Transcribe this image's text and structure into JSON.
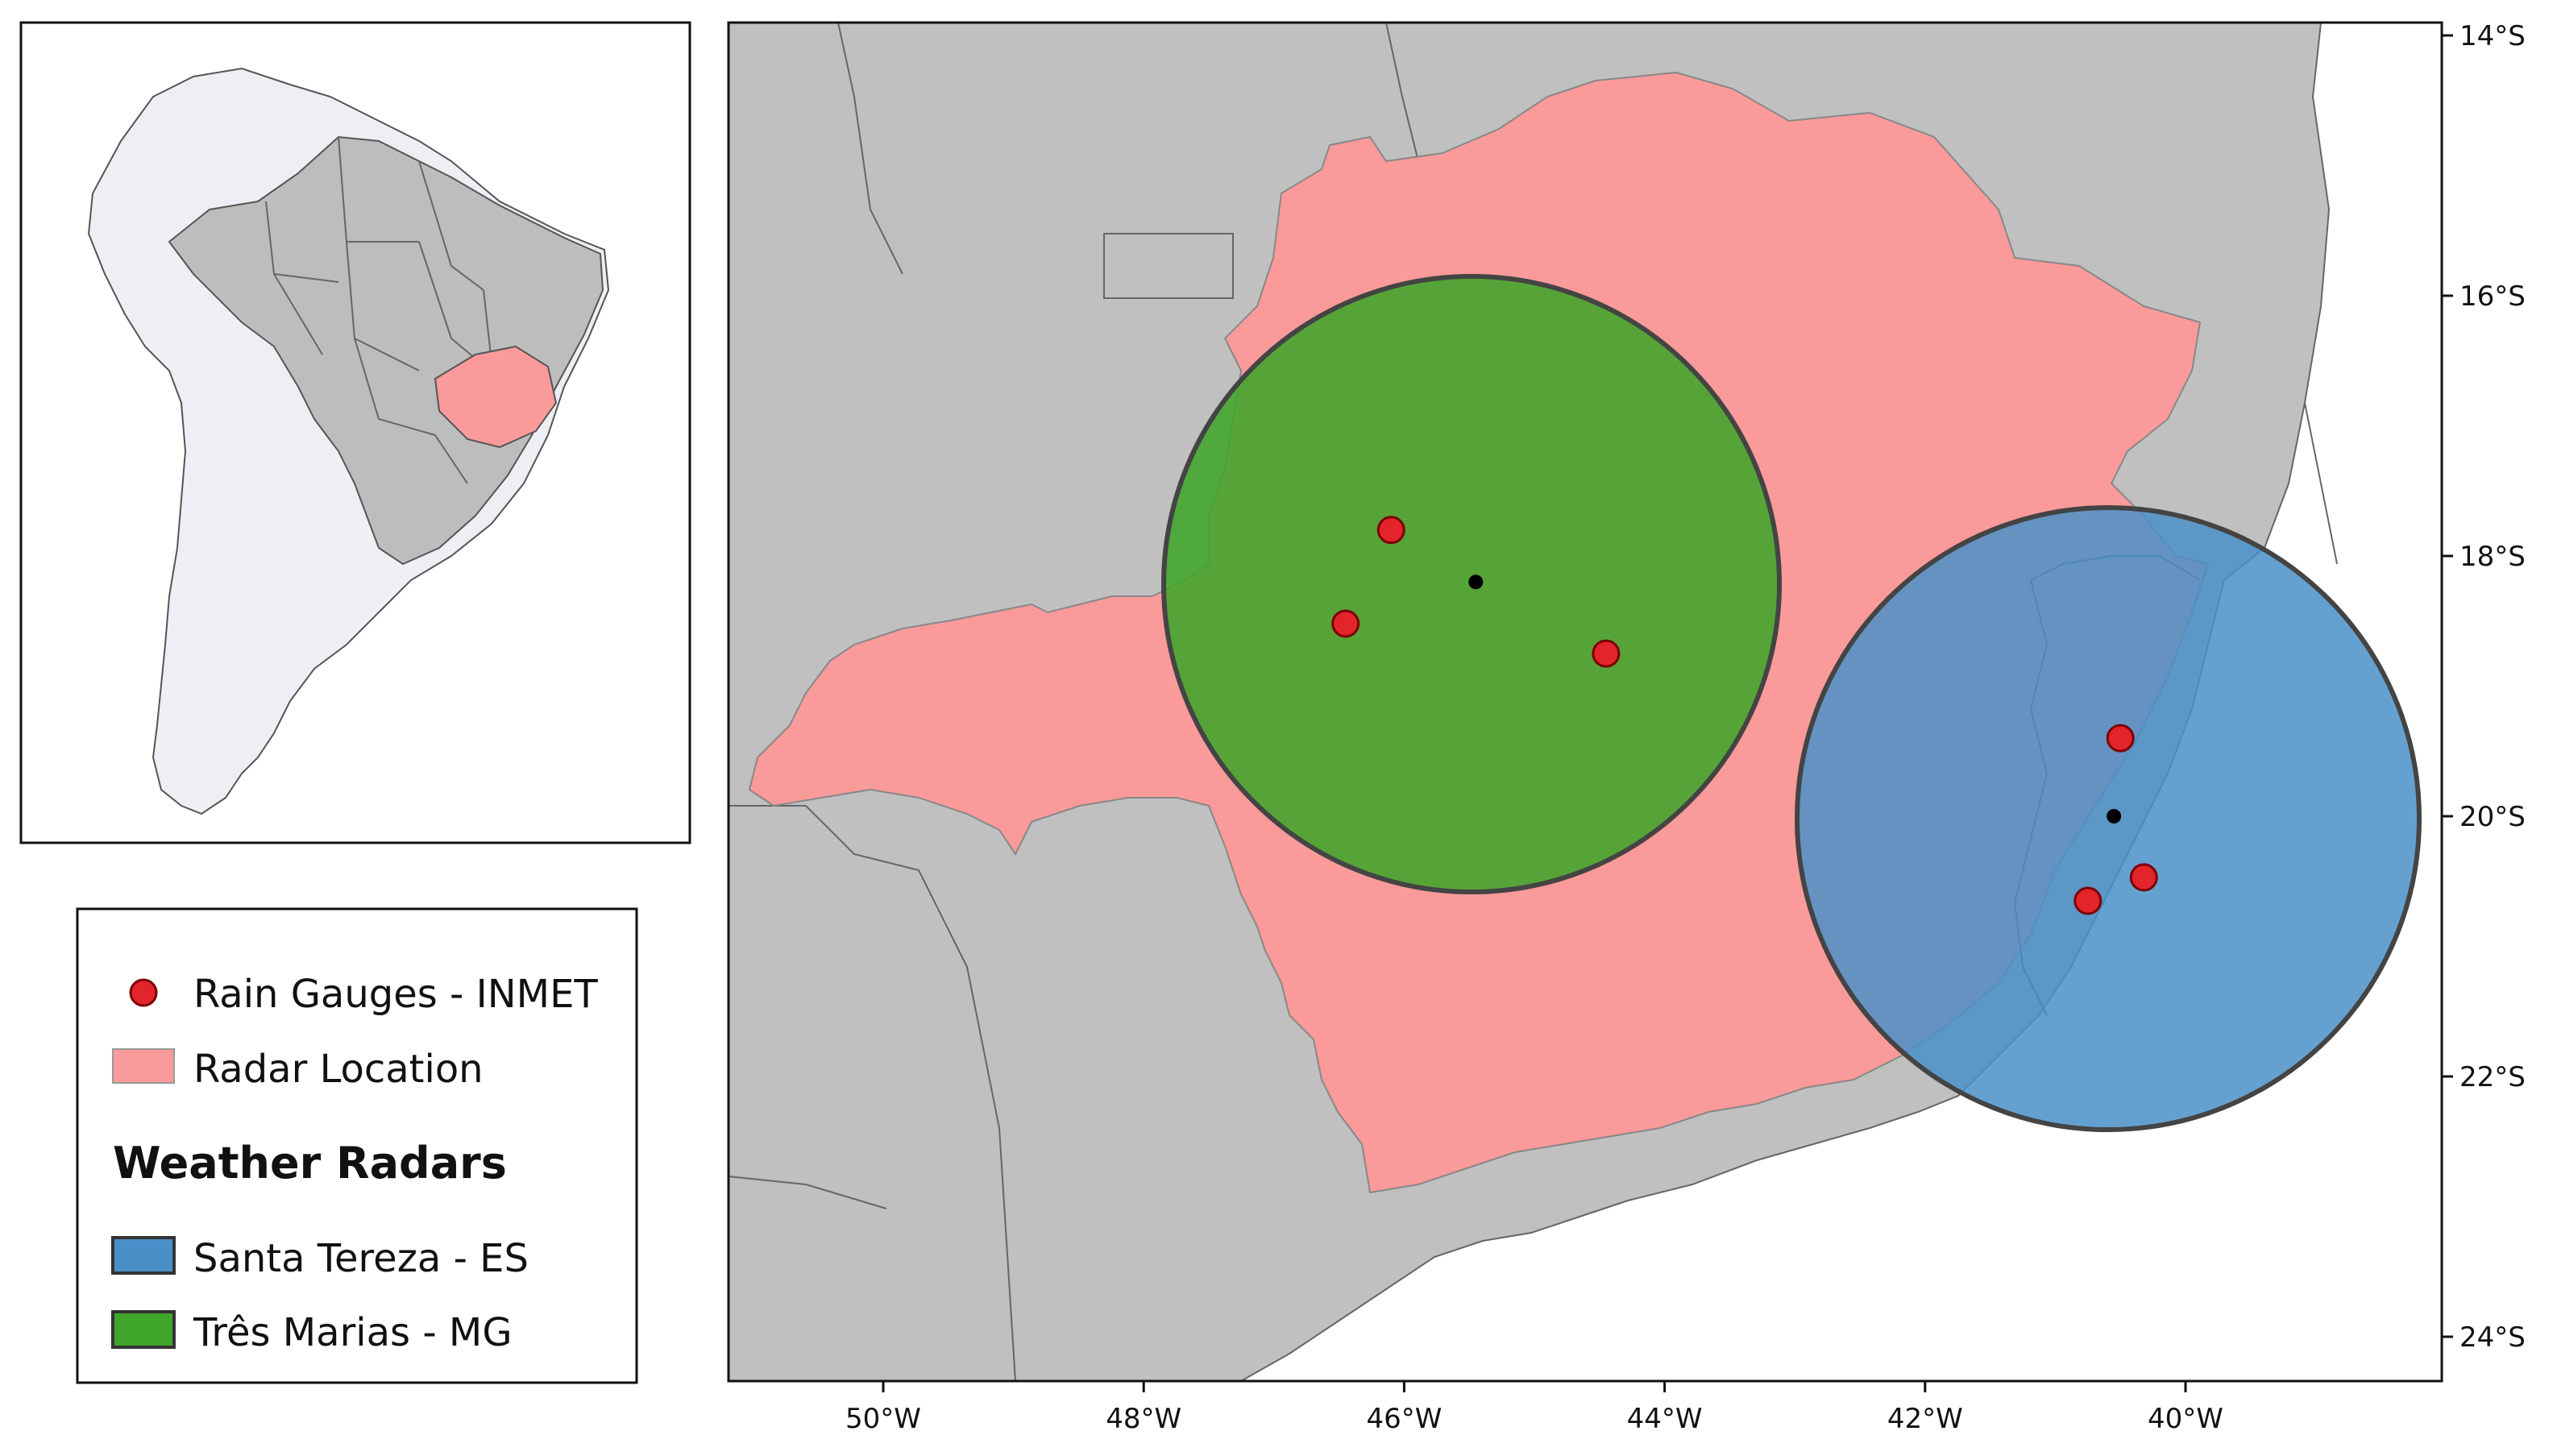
{
  "legend": {
    "rain_gauges_label": "Rain Gauges - INMET",
    "radar_location_label": "Radar Location",
    "weather_radars_title": "Weather Radars",
    "santa_tereza_label": "Santa Tereza - ES",
    "tres_marias_label": "Três Marias - MG"
  },
  "axes": {
    "x_ticks": [
      "50°W",
      "48°W",
      "46°W",
      "44°W",
      "42°W",
      "40°W"
    ],
    "y_ticks": [
      "14°S",
      "16°S",
      "18°S",
      "20°S",
      "22°S",
      "24°S"
    ]
  },
  "colors": {
    "land": "#c0c0c0",
    "radar_location": "#fb9a9a",
    "santa_tereza": "#4a90c8",
    "tres_marias": "#3fa52a",
    "rain_gauge": "#e3242b",
    "inset_continent": "#eeeff4"
  },
  "map_data": {
    "radars": [
      {
        "name": "Três Marias - MG",
        "lon": -45.45,
        "lat": -18.2
      },
      {
        "name": "Santa Tereza - ES",
        "lon": -40.55,
        "lat": -20.0
      }
    ],
    "rain_gauges": [
      {
        "lon": -46.1,
        "lat": -17.8
      },
      {
        "lon": -46.45,
        "lat": -18.52
      },
      {
        "lon": -44.45,
        "lat": -18.75
      },
      {
        "lon": -40.5,
        "lat": -19.4
      },
      {
        "lon": -40.75,
        "lat": -20.65
      },
      {
        "lon": -40.32,
        "lat": -20.47
      }
    ]
  }
}
